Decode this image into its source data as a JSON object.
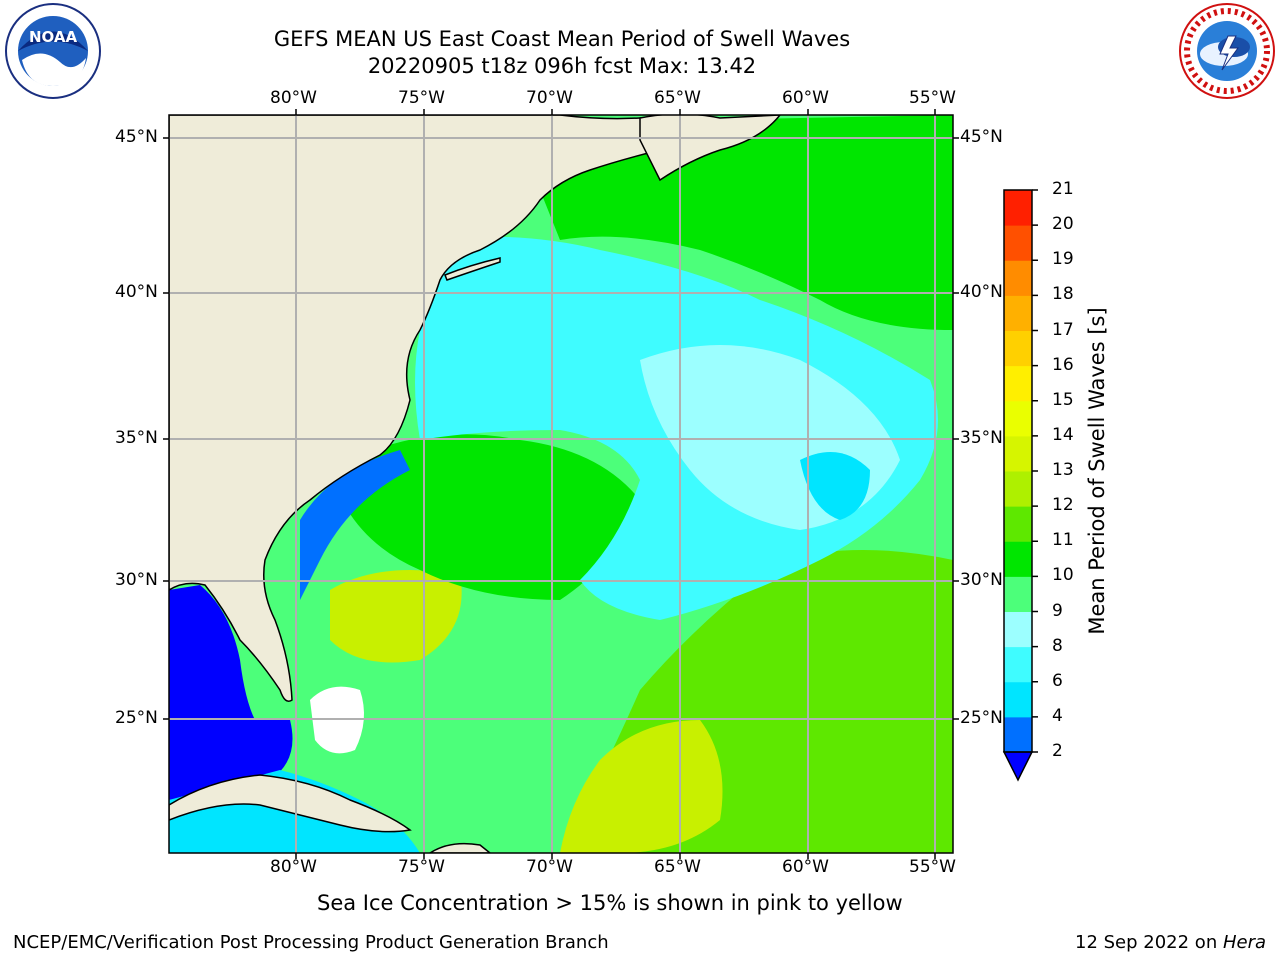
{
  "header": {
    "title": "GEFS MEAN US East Coast Mean Period of Swell Waves",
    "subtitle": "20220905 t18z 096h fcst   Max: 13.42"
  },
  "logos": {
    "left": {
      "icon": "noaa-logo-icon",
      "text": "NOAA"
    },
    "right": {
      "icon": "nws-logo-icon"
    }
  },
  "map": {
    "lon_labels": [
      "80°W",
      "75°W",
      "70°W",
      "65°W",
      "60°W",
      "55°W"
    ],
    "lat_labels": [
      "45°N",
      "40°N",
      "35°N",
      "30°N",
      "25°N"
    ],
    "colors": {
      "land": "#efecd9",
      "grid": "#b0b0b0",
      "coast": "#000000"
    }
  },
  "colorbar": {
    "label": "Mean Period of Swell Waves [s]",
    "ticks": [
      "2",
      "4",
      "6",
      "8",
      "9",
      "10",
      "11",
      "12",
      "13",
      "14",
      "15",
      "16",
      "17",
      "18",
      "19",
      "20",
      "21"
    ],
    "colors": [
      "#0070ff",
      "#00e5ff",
      "#3ffcff",
      "#9cffff",
      "#4cff7a",
      "#00e600",
      "#5ee800",
      "#aef000",
      "#d6f500",
      "#eaff00",
      "#ffef00",
      "#ffd000",
      "#ffb000",
      "#ff8c00",
      "#ff5000",
      "#ff2000"
    ],
    "under_color": "#0000ff"
  },
  "footer": {
    "note": "Sea Ice Concentration > 15% is shown in pink to yellow",
    "left": "NCEP/EMC/Verification Post Processing Product Generation Branch",
    "right_date": "12 Sep 2022 on ",
    "right_machine": "Hera"
  }
}
